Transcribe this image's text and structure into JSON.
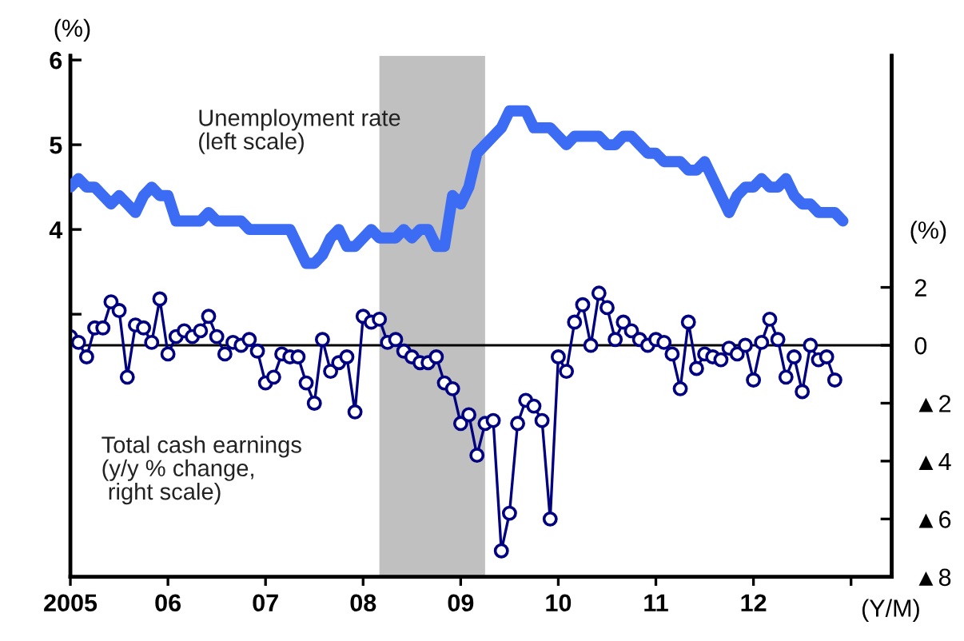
{
  "chart_data": {
    "type": "line",
    "x": [
      "2005-01",
      "2005-02",
      "2005-03",
      "2005-04",
      "2005-05",
      "2005-06",
      "2005-07",
      "2005-08",
      "2005-09",
      "2005-10",
      "2005-11",
      "2005-12",
      "2006-01",
      "2006-02",
      "2006-03",
      "2006-04",
      "2006-05",
      "2006-06",
      "2006-07",
      "2006-08",
      "2006-09",
      "2006-10",
      "2006-11",
      "2006-12",
      "2007-01",
      "2007-02",
      "2007-03",
      "2007-04",
      "2007-05",
      "2007-06",
      "2007-07",
      "2007-08",
      "2007-09",
      "2007-10",
      "2007-11",
      "2007-12",
      "2008-01",
      "2008-02",
      "2008-03",
      "2008-04",
      "2008-05",
      "2008-06",
      "2008-07",
      "2008-08",
      "2008-09",
      "2008-10",
      "2008-11",
      "2008-12",
      "2009-01",
      "2009-02",
      "2009-03",
      "2009-04",
      "2009-05",
      "2009-06",
      "2009-07",
      "2009-08",
      "2009-09",
      "2009-10",
      "2009-11",
      "2009-12",
      "2010-01",
      "2010-02",
      "2010-03",
      "2010-04",
      "2010-05",
      "2010-06",
      "2010-07",
      "2010-08",
      "2010-09",
      "2010-10",
      "2010-11",
      "2010-12",
      "2011-01",
      "2011-02",
      "2011-03",
      "2011-04",
      "2011-05",
      "2011-06",
      "2011-07",
      "2011-08",
      "2011-09",
      "2011-10",
      "2011-11",
      "2011-12",
      "2012-01",
      "2012-02",
      "2012-03",
      "2012-04",
      "2012-05",
      "2012-06",
      "2012-07",
      "2012-08",
      "2012-09",
      "2012-10",
      "2012-11",
      "2012-12"
    ],
    "series": [
      {
        "axis": "y",
        "color": "#3c6cf4",
        "marker": "none",
        "values": [
          4.5,
          4.6,
          4.5,
          4.5,
          4.4,
          4.3,
          4.4,
          4.3,
          4.2,
          4.4,
          4.5,
          4.4,
          4.4,
          4.1,
          4.1,
          4.1,
          4.1,
          4.2,
          4.1,
          4.1,
          4.1,
          4.1,
          4.0,
          4.0,
          4.0,
          4.0,
          4.0,
          4.0,
          3.8,
          3.6,
          3.6,
          3.7,
          3.9,
          4.0,
          3.8,
          3.8,
          3.9,
          4.0,
          3.9,
          3.9,
          3.9,
          4.0,
          3.9,
          4.0,
          4.0,
          3.8,
          3.8,
          4.4,
          4.3,
          4.5,
          4.9,
          5.0,
          5.1,
          5.2,
          5.4,
          5.4,
          5.4,
          5.2,
          5.2,
          5.2,
          5.1,
          5.0,
          5.1,
          5.1,
          5.1,
          5.1,
          5.0,
          5.0,
          5.1,
          5.1,
          5.0,
          4.9,
          4.9,
          4.8,
          4.8,
          4.8,
          4.7,
          4.7,
          4.8,
          4.6,
          4.4,
          4.2,
          4.4,
          4.5,
          4.5,
          4.6,
          4.5,
          4.5,
          4.6,
          4.4,
          4.3,
          4.3,
          4.2,
          4.2,
          4.2,
          4.1
        ]
      },
      {
        "axis": "y2",
        "color": "#000080",
        "marker": "circle",
        "values": [
          0.3,
          0.1,
          -0.4,
          0.6,
          0.6,
          1.5,
          1.2,
          -1.1,
          0.7,
          0.6,
          0.1,
          1.6,
          -0.3,
          0.3,
          0.5,
          0.3,
          0.5,
          1.0,
          0.3,
          -0.3,
          0.1,
          0.0,
          0.2,
          -0.2,
          -1.3,
          -1.1,
          -0.3,
          -0.4,
          -0.4,
          -1.3,
          -2.0,
          0.2,
          -0.9,
          -0.6,
          -0.4,
          -2.3,
          1.0,
          0.8,
          0.9,
          0.1,
          0.2,
          -0.2,
          -0.4,
          -0.6,
          -0.6,
          -0.4,
          -1.3,
          -1.5,
          -2.7,
          -2.4,
          -3.8,
          -2.7,
          -2.6,
          -7.1,
          -5.8,
          -2.7,
          -1.9,
          -2.1,
          -2.6,
          -6.0,
          -0.4,
          -0.9,
          0.8,
          1.4,
          0.0,
          1.8,
          1.3,
          0.2,
          0.8,
          0.5,
          0.2,
          0.0,
          0.2,
          0.1,
          -0.3,
          -1.5,
          0.8,
          -0.8,
          -0.3,
          -0.4,
          -0.5,
          -0.1,
          -0.3,
          0.0,
          -1.2,
          0.1,
          0.9,
          0.2,
          -1.1,
          -0.4,
          -1.6,
          0.0,
          -0.5,
          -0.4,
          -1.2,
          null
        ]
      }
    ],
    "xlim": [
      "2005-01",
      "2013-06"
    ],
    "xticks": [
      {
        "value": "2005-01",
        "label": "2005"
      },
      {
        "value": "2006-01",
        "label": "06"
      },
      {
        "value": "2007-01",
        "label": "07"
      },
      {
        "value": "2008-01",
        "label": "08"
      },
      {
        "value": "2009-01",
        "label": "09"
      },
      {
        "value": "2010-01",
        "label": "10"
      },
      {
        "value": "2011-01",
        "label": "11"
      },
      {
        "value": "2012-01",
        "label": "12"
      },
      {
        "value": "2013-01",
        "label": null
      }
    ],
    "ylim": [
      -0.1,
      6.05
    ],
    "yticks": [
      {
        "value": 3,
        "label": null
      },
      4,
      5,
      6
    ],
    "y2lim": [
      -8,
      10
    ],
    "y2ticks": [
      2,
      0,
      {
        "value": -2,
        "label": "▲2"
      },
      {
        "value": -4,
        "label": "▲4"
      },
      {
        "value": -6,
        "label": "▲6"
      },
      {
        "value": -8,
        "label": "▲8"
      }
    ],
    "ylabel": "(%)",
    "y2label": "(%)",
    "xlabel": "(Y/M)",
    "bands": [
      {
        "axis": "x",
        "from": "2008-03",
        "to": "2009-04",
        "color": "#c0c0c0"
      }
    ],
    "ref_lines": [
      {
        "axis": "y2",
        "value": 0,
        "color": "#000000"
      }
    ],
    "annotations": [
      "Unemployment rate\n(left scale)",
      "Total cash earnings\n(y/y % change,\n right scale)"
    ],
    "grid": false,
    "legend": false
  }
}
